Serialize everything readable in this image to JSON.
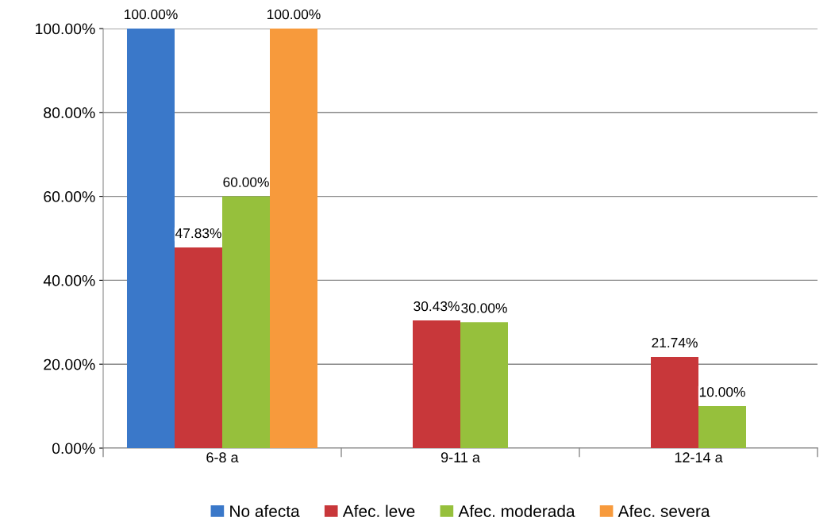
{
  "chart_data": {
    "type": "bar",
    "categories": [
      "6-8 a",
      "9-11 a",
      "12-14 a"
    ],
    "series": [
      {
        "name": "No afecta",
        "color": "#3a78c9",
        "values": [
          100.0,
          null,
          null
        ],
        "value_labels": [
          "100.00%",
          null,
          null
        ]
      },
      {
        "name": "Afec. leve",
        "color": "#c8373a",
        "values": [
          47.83,
          30.43,
          21.74
        ],
        "value_labels": [
          "47.83%",
          "30.43%",
          "21.74%"
        ]
      },
      {
        "name": "Afec. moderada",
        "color": "#96c03c",
        "values": [
          60.0,
          30.0,
          10.0
        ],
        "value_labels": [
          "60.00%",
          "30.00%",
          "10.00%"
        ]
      },
      {
        "name": "Afec. severa",
        "color": "#f79a3c",
        "values": [
          100.0,
          null,
          null
        ],
        "value_labels": [
          "100.00%",
          null,
          null
        ]
      }
    ],
    "ylim": [
      0,
      100
    ],
    "yticks": [
      {
        "value": 0,
        "label": "0.00%"
      },
      {
        "value": 20,
        "label": "20.00%"
      },
      {
        "value": 40,
        "label": "40.00%"
      },
      {
        "value": 60,
        "label": "60.00%"
      },
      {
        "value": 80,
        "label": "80.00%"
      },
      {
        "value": 100,
        "label": "100.00%"
      }
    ],
    "grid": "y",
    "legend": "bottom"
  }
}
